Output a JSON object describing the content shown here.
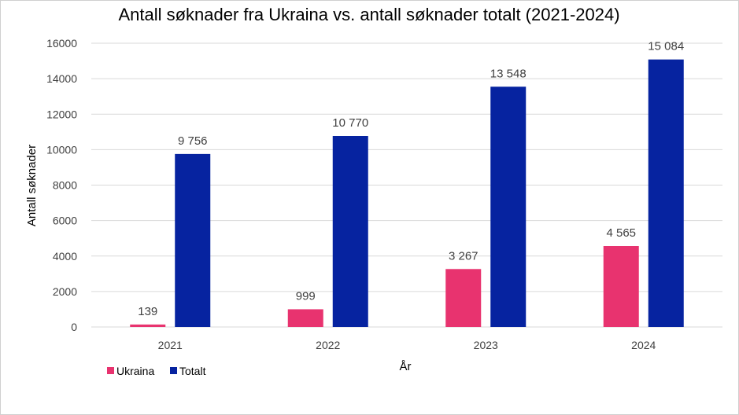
{
  "chart_data": {
    "type": "bar",
    "title": "Antall søknader fra Ukraina vs. antall søknader totalt (2021-2024)",
    "xlabel": "År",
    "ylabel": "Antall søknader",
    "categories": [
      "2021",
      "2022",
      "2023",
      "2024"
    ],
    "series": [
      {
        "name": "Ukraina",
        "color": "#e8336f",
        "values": [
          139,
          999,
          3267,
          4565
        ],
        "labels": [
          "139",
          "999",
          "3 267",
          "4 565"
        ]
      },
      {
        "name": "Totalt",
        "color": "#0623a0",
        "values": [
          9756,
          10770,
          13548,
          15084
        ],
        "labels": [
          "9 756",
          "10 770",
          "13 548",
          "15 084"
        ]
      }
    ],
    "ylim": [
      0,
      16000
    ],
    "yticks": [
      "0",
      "2000",
      "4000",
      "6000",
      "8000",
      "10000",
      "12000",
      "14000",
      "16000"
    ],
    "grid": true,
    "legend_position": "bottom-left"
  }
}
